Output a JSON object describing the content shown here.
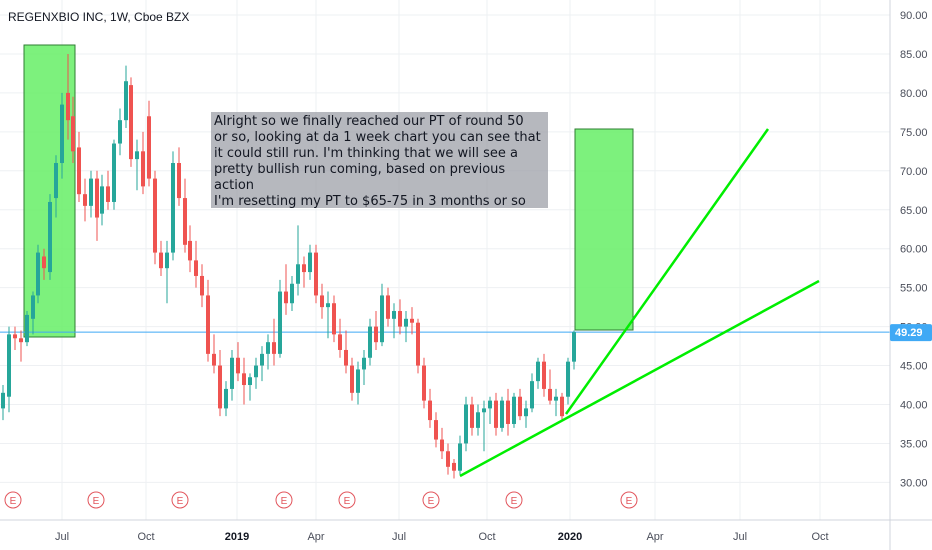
{
  "header": {
    "ticker": "REGENXBIO INC, 1W, Cboe BZX"
  },
  "annotation": {
    "text": "Alright so we finally reached our PT of round 50\nor so, looking at da 1 week chart you can see that\nit could still run. I'm thinking that we will see a\npretty bullish run coming, based on previous action\nI'm resetting my PT to $65-75 in 3 months or so"
  },
  "colors": {
    "up": "#26a69a",
    "down": "#ef5350",
    "zone_fill": "#66ee66",
    "zone_border": "#2e7d32",
    "trendline": "#00ee00",
    "price_line": "#3fa9f5",
    "grid": "#eef0f3",
    "earnings": "#e2555c"
  },
  "earnings_marker_label": "E",
  "earnings_markers_x": [
    13,
    96,
    180,
    284,
    347,
    431,
    514,
    629
  ],
  "chart_data": {
    "type": "candlestick",
    "title": "REGENXBIO INC, 1W, Cboe BZX",
    "y_range": [
      25.0,
      91.0
    ],
    "y_ticks": [
      "30.00",
      "35.00",
      "40.00",
      "45.00",
      "50.00",
      "55.00",
      "60.00",
      "65.00",
      "70.00",
      "75.00",
      "80.00",
      "85.00",
      "90.00"
    ],
    "x_ticks": [
      {
        "label": "Jul",
        "bold": false
      },
      {
        "label": "Oct",
        "bold": false
      },
      {
        "label": "2019",
        "bold": true
      },
      {
        "label": "Apr",
        "bold": false
      },
      {
        "label": "Jul",
        "bold": false
      },
      {
        "label": "Oct",
        "bold": false
      },
      {
        "label": "2020",
        "bold": true
      },
      {
        "label": "Apr",
        "bold": false
      },
      {
        "label": "Jul",
        "bold": false
      },
      {
        "label": "Oct",
        "bold": false
      }
    ],
    "current_price": "49.29",
    "current_price_value": 49.29,
    "candles": [
      {
        "x": 3,
        "o": 39.5,
        "h": 42.5,
        "l": 38.0,
        "c": 41.5
      },
      {
        "x": 9,
        "o": 41.0,
        "h": 50.0,
        "l": 39.0,
        "c": 49.0
      },
      {
        "x": 15,
        "o": 49.0,
        "h": 50.0,
        "l": 47.0,
        "c": 48.5
      },
      {
        "x": 21,
        "o": 48.5,
        "h": 49.5,
        "l": 45.5,
        "c": 48.0
      },
      {
        "x": 27,
        "o": 48.0,
        "h": 52.0,
        "l": 47.5,
        "c": 51.5
      },
      {
        "x": 33,
        "o": 51.0,
        "h": 54.5,
        "l": 49.0,
        "c": 54.0
      },
      {
        "x": 38,
        "o": 54.0,
        "h": 60.5,
        "l": 53.0,
        "c": 59.5
      },
      {
        "x": 44,
        "o": 59.0,
        "h": 60.0,
        "l": 56.0,
        "c": 57.5
      },
      {
        "x": 50,
        "o": 57.0,
        "h": 67.0,
        "l": 56.0,
        "c": 66.0
      },
      {
        "x": 56,
        "o": 66.5,
        "h": 72.0,
        "l": 64.0,
        "c": 71.0
      },
      {
        "x": 62,
        "o": 71.0,
        "h": 80.0,
        "l": 69.0,
        "c": 78.5
      },
      {
        "x": 68,
        "o": 80.0,
        "h": 85.0,
        "l": 74.0,
        "c": 76.5
      },
      {
        "x": 73,
        "o": 77.0,
        "h": 79.5,
        "l": 71.0,
        "c": 72.5
      },
      {
        "x": 79,
        "o": 73.0,
        "h": 75.0,
        "l": 66.0,
        "c": 67.0
      },
      {
        "x": 85,
        "o": 67.0,
        "h": 69.0,
        "l": 63.5,
        "c": 65.5
      },
      {
        "x": 91,
        "o": 65.5,
        "h": 70.0,
        "l": 64.0,
        "c": 69.0
      },
      {
        "x": 97,
        "o": 69.0,
        "h": 70.0,
        "l": 61.0,
        "c": 64.0
      },
      {
        "x": 102,
        "o": 64.5,
        "h": 69.5,
        "l": 63.0,
        "c": 68.0
      },
      {
        "x": 108,
        "o": 68.0,
        "h": 70.0,
        "l": 65.0,
        "c": 66.0
      },
      {
        "x": 114,
        "o": 66.0,
        "h": 74.0,
        "l": 65.0,
        "c": 73.5
      },
      {
        "x": 120,
        "o": 73.5,
        "h": 78.0,
        "l": 72.0,
        "c": 76.5
      },
      {
        "x": 126,
        "o": 76.5,
        "h": 83.5,
        "l": 75.5,
        "c": 81.5
      },
      {
        "x": 131,
        "o": 81.0,
        "h": 82.0,
        "l": 70.5,
        "c": 71.5
      },
      {
        "x": 137,
        "o": 71.5,
        "h": 74.0,
        "l": 67.5,
        "c": 72.5
      },
      {
        "x": 143,
        "o": 72.5,
        "h": 75.0,
        "l": 67.0,
        "c": 68.0
      },
      {
        "x": 149,
        "o": 77.0,
        "h": 79.0,
        "l": 68.0,
        "c": 69.0
      },
      {
        "x": 155,
        "o": 69.0,
        "h": 70.0,
        "l": 58.0,
        "c": 59.5
      },
      {
        "x": 161,
        "o": 59.5,
        "h": 61.0,
        "l": 56.5,
        "c": 57.5
      },
      {
        "x": 167,
        "o": 57.5,
        "h": 61.0,
        "l": 53.0,
        "c": 59.5
      },
      {
        "x": 173,
        "o": 59.5,
        "h": 72.5,
        "l": 58.5,
        "c": 71.0
      },
      {
        "x": 179,
        "o": 71.0,
        "h": 73.0,
        "l": 65.5,
        "c": 66.5
      },
      {
        "x": 185,
        "o": 66.5,
        "h": 69.0,
        "l": 59.5,
        "c": 60.5
      },
      {
        "x": 190,
        "o": 61.0,
        "h": 63.0,
        "l": 57.0,
        "c": 58.5
      },
      {
        "x": 196,
        "o": 58.5,
        "h": 61.0,
        "l": 55.0,
        "c": 56.5
      },
      {
        "x": 202,
        "o": 56.5,
        "h": 58.0,
        "l": 52.5,
        "c": 54.0
      },
      {
        "x": 208,
        "o": 54.0,
        "h": 56.0,
        "l": 45.5,
        "c": 46.5
      },
      {
        "x": 214,
        "o": 46.5,
        "h": 49.0,
        "l": 44.0,
        "c": 45.0
      },
      {
        "x": 220,
        "o": 45.0,
        "h": 47.0,
        "l": 38.5,
        "c": 39.5
      },
      {
        "x": 226,
        "o": 39.5,
        "h": 43.0,
        "l": 38.5,
        "c": 42.0
      },
      {
        "x": 232,
        "o": 42.0,
        "h": 47.0,
        "l": 40.5,
        "c": 46.0
      },
      {
        "x": 238,
        "o": 46.0,
        "h": 48.0,
        "l": 43.0,
        "c": 44.0
      },
      {
        "x": 244,
        "o": 44.0,
        "h": 46.0,
        "l": 40.0,
        "c": 42.5
      },
      {
        "x": 250,
        "o": 42.5,
        "h": 44.0,
        "l": 40.5,
        "c": 43.5
      },
      {
        "x": 256,
        "o": 43.5,
        "h": 46.0,
        "l": 42.0,
        "c": 45.0
      },
      {
        "x": 262,
        "o": 45.0,
        "h": 47.5,
        "l": 43.0,
        "c": 46.5
      },
      {
        "x": 268,
        "o": 46.5,
        "h": 49.0,
        "l": 44.5,
        "c": 48.0
      },
      {
        "x": 274,
        "o": 48.0,
        "h": 51.0,
        "l": 45.0,
        "c": 46.5
      },
      {
        "x": 280,
        "o": 46.5,
        "h": 56.0,
        "l": 46.0,
        "c": 54.5
      },
      {
        "x": 286,
        "o": 54.5,
        "h": 58.0,
        "l": 51.5,
        "c": 53.0
      },
      {
        "x": 292,
        "o": 53.0,
        "h": 56.5,
        "l": 52.0,
        "c": 55.5
      },
      {
        "x": 298,
        "o": 55.5,
        "h": 63.0,
        "l": 54.0,
        "c": 58.0
      },
      {
        "x": 304,
        "o": 58.0,
        "h": 59.0,
        "l": 55.0,
        "c": 57.0
      },
      {
        "x": 310,
        "o": 57.0,
        "h": 60.5,
        "l": 56.0,
        "c": 59.5
      },
      {
        "x": 316,
        "o": 59.5,
        "h": 60.5,
        "l": 53.0,
        "c": 54.0
      },
      {
        "x": 322,
        "o": 54.0,
        "h": 55.5,
        "l": 51.0,
        "c": 52.5
      },
      {
        "x": 328,
        "o": 52.5,
        "h": 54.5,
        "l": 48.5,
        "c": 53.0
      },
      {
        "x": 334,
        "o": 53.0,
        "h": 54.0,
        "l": 48.0,
        "c": 49.0
      },
      {
        "x": 340,
        "o": 49.0,
        "h": 51.0,
        "l": 46.0,
        "c": 47.0
      },
      {
        "x": 346,
        "o": 47.0,
        "h": 49.5,
        "l": 44.0,
        "c": 45.0
      },
      {
        "x": 352,
        "o": 45.0,
        "h": 46.0,
        "l": 40.5,
        "c": 41.5
      },
      {
        "x": 358,
        "o": 41.5,
        "h": 45.5,
        "l": 40.0,
        "c": 44.5
      },
      {
        "x": 364,
        "o": 44.5,
        "h": 47.0,
        "l": 42.5,
        "c": 46.0
      },
      {
        "x": 370,
        "o": 46.0,
        "h": 51.0,
        "l": 45.0,
        "c": 50.0
      },
      {
        "x": 376,
        "o": 50.0,
        "h": 52.0,
        "l": 47.0,
        "c": 48.0
      },
      {
        "x": 382,
        "o": 48.0,
        "h": 55.5,
        "l": 47.5,
        "c": 54.0
      },
      {
        "x": 388,
        "o": 54.0,
        "h": 55.0,
        "l": 50.0,
        "c": 51.0
      },
      {
        "x": 394,
        "o": 51.0,
        "h": 53.0,
        "l": 48.5,
        "c": 52.0
      },
      {
        "x": 400,
        "o": 52.0,
        "h": 53.5,
        "l": 49.0,
        "c": 50.0
      },
      {
        "x": 406,
        "o": 50.0,
        "h": 52.0,
        "l": 48.0,
        "c": 51.0
      },
      {
        "x": 412,
        "o": 51.0,
        "h": 52.5,
        "l": 49.0,
        "c": 50.5
      },
      {
        "x": 418,
        "o": 50.5,
        "h": 51.0,
        "l": 44.0,
        "c": 45.0
      },
      {
        "x": 424,
        "o": 45.0,
        "h": 46.0,
        "l": 39.5,
        "c": 40.5
      },
      {
        "x": 430,
        "o": 40.5,
        "h": 42.0,
        "l": 37.0,
        "c": 38.0
      },
      {
        "x": 436,
        "o": 38.0,
        "h": 39.0,
        "l": 34.5,
        "c": 35.5
      },
      {
        "x": 442,
        "o": 35.5,
        "h": 37.0,
        "l": 33.0,
        "c": 34.0
      },
      {
        "x": 448,
        "o": 34.0,
        "h": 35.0,
        "l": 31.0,
        "c": 32.0
      },
      {
        "x": 454,
        "o": 32.5,
        "h": 33.0,
        "l": 30.5,
        "c": 31.5
      },
      {
        "x": 460,
        "o": 31.5,
        "h": 36.0,
        "l": 31.0,
        "c": 35.0
      },
      {
        "x": 466,
        "o": 35.0,
        "h": 41.0,
        "l": 34.0,
        "c": 40.0
      },
      {
        "x": 472,
        "o": 40.0,
        "h": 41.0,
        "l": 36.0,
        "c": 37.0
      },
      {
        "x": 478,
        "o": 37.0,
        "h": 40.0,
        "l": 36.0,
        "c": 39.0
      },
      {
        "x": 484,
        "o": 39.0,
        "h": 40.5,
        "l": 34.0,
        "c": 39.5
      },
      {
        "x": 490,
        "o": 39.5,
        "h": 41.0,
        "l": 37.5,
        "c": 40.5
      },
      {
        "x": 496,
        "o": 40.5,
        "h": 41.5,
        "l": 36.0,
        "c": 37.0
      },
      {
        "x": 502,
        "o": 37.0,
        "h": 41.0,
        "l": 36.5,
        "c": 40.5
      },
      {
        "x": 508,
        "o": 40.5,
        "h": 42.0,
        "l": 36.0,
        "c": 37.5
      },
      {
        "x": 514,
        "o": 37.5,
        "h": 41.5,
        "l": 37.0,
        "c": 41.0
      },
      {
        "x": 520,
        "o": 41.0,
        "h": 42.0,
        "l": 38.0,
        "c": 38.5
      },
      {
        "x": 526,
        "o": 38.5,
        "h": 40.5,
        "l": 37.0,
        "c": 39.5
      },
      {
        "x": 532,
        "o": 39.5,
        "h": 44.0,
        "l": 39.0,
        "c": 43.0
      },
      {
        "x": 538,
        "o": 43.0,
        "h": 46.0,
        "l": 42.0,
        "c": 45.5
      },
      {
        "x": 544,
        "o": 45.5,
        "h": 46.5,
        "l": 41.0,
        "c": 42.0
      },
      {
        "x": 550,
        "o": 42.0,
        "h": 44.5,
        "l": 40.0,
        "c": 40.5
      },
      {
        "x": 556,
        "o": 40.5,
        "h": 42.0,
        "l": 38.5,
        "c": 41.0
      },
      {
        "x": 562,
        "o": 41.0,
        "h": 41.5,
        "l": 38.0,
        "c": 38.5
      },
      {
        "x": 568,
        "o": 41.0,
        "h": 46.0,
        "l": 40.0,
        "c": 45.5
      },
      {
        "x": 574,
        "o": 45.5,
        "h": 49.5,
        "l": 44.5,
        "c": 49.29
      }
    ]
  }
}
